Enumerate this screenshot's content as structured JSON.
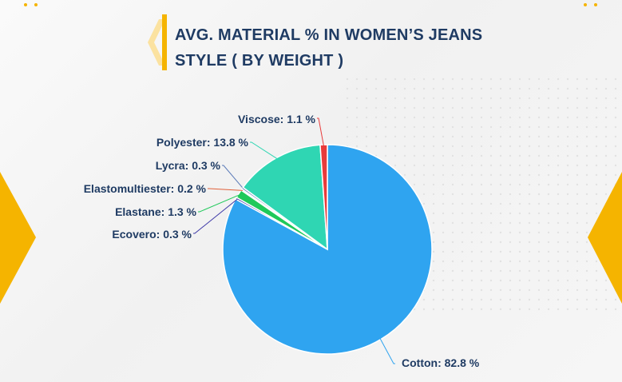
{
  "title": "AVG. MATERIAL % IN WOMEN’S JEANS STYLE ( BY WEIGHT )",
  "colors": {
    "accent": "#f5b400",
    "title": "#1f3b63",
    "background": "#f3f3f3"
  },
  "chart_data": {
    "type": "pie",
    "title": "AVG. MATERIAL % IN WOMEN’S JEANS STYLE ( BY WEIGHT )",
    "slices": [
      {
        "name": "Cotton",
        "value": 82.8,
        "label": "Cotton: 82.8 %",
        "color": "#2fa4f0"
      },
      {
        "name": "Ecovero",
        "value": 0.3,
        "label": "Ecovero: 0.3 %",
        "color": "#3f3aa8"
      },
      {
        "name": "Elastane",
        "value": 1.3,
        "label": "Elastane: 1.3 %",
        "color": "#1fc95a"
      },
      {
        "name": "Elastomultiester",
        "value": 0.2,
        "label": "Elastomultiester: 0.2 %",
        "color": "#e0603a"
      },
      {
        "name": "Lycra",
        "value": 0.3,
        "label": "Lycra: 0.3 %",
        "color": "#5a7ab8"
      },
      {
        "name": "Polyester",
        "value": 13.8,
        "label": "Polyester: 13.8 %",
        "color": "#2fd6b3"
      },
      {
        "name": "Viscose",
        "value": 1.1,
        "label": "Viscose: 1.1 %",
        "color": "#e83b3b"
      }
    ]
  }
}
